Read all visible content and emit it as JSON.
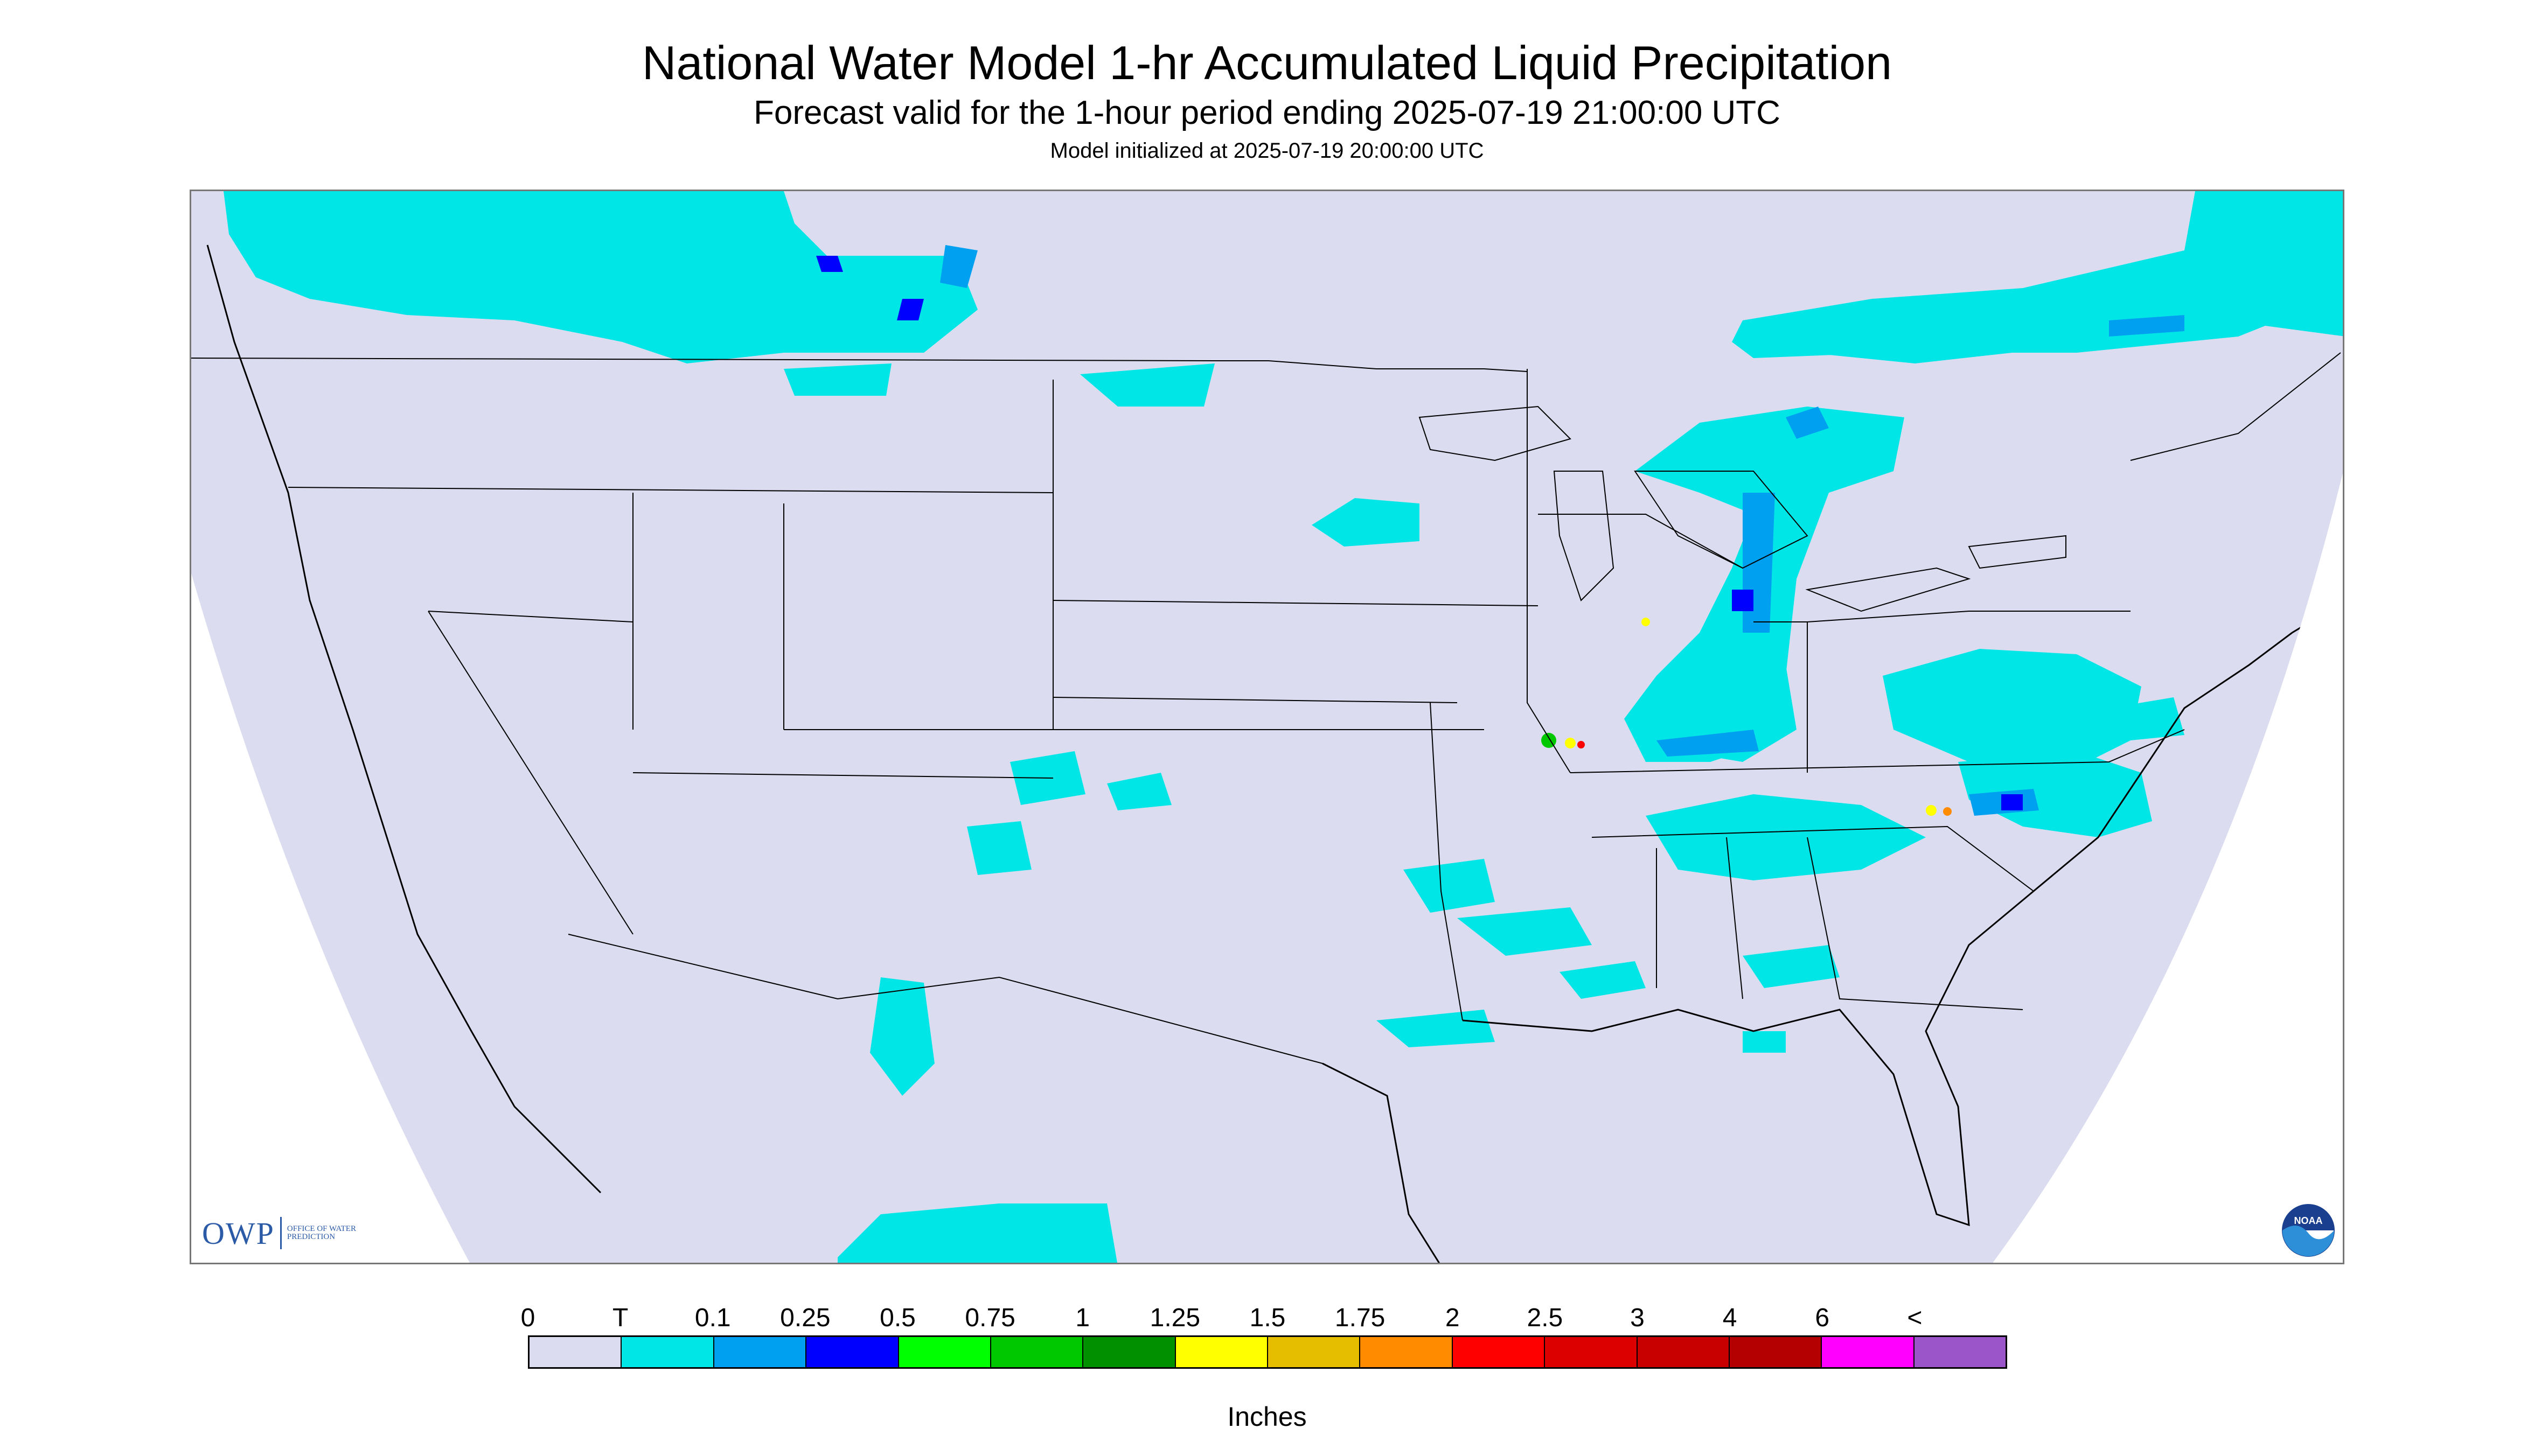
{
  "title": "National Water Model 1-hr Accumulated Liquid Precipitation",
  "subtitle": "Forecast valid for the 1-hour period ending 2025-07-19 21:00:00 UTC",
  "init_line": "Model initialized at 2025-07-19 20:00:00 UTC",
  "logo": {
    "owp_mark": "OWP",
    "owp_text": "OFFICE OF WATER PREDICTION",
    "noaa_text": "NOAA"
  },
  "legend": {
    "unit": "Inches",
    "tick_labels": [
      "0",
      "T",
      "0.1",
      "0.25",
      "0.5",
      "0.75",
      "1",
      "1.25",
      "1.5",
      "1.75",
      "2",
      "2.5",
      "3",
      "4",
      "6",
      "<"
    ],
    "colors": [
      "#dcdcf0",
      "#00e6e6",
      "#00a0f0",
      "#0000ff",
      "#00ff00",
      "#00c800",
      "#009000",
      "#ffff00",
      "#e6be00",
      "#ff8c00",
      "#ff0000",
      "#dc0000",
      "#c80000",
      "#b40000",
      "#ff00ff",
      "#9b55c8"
    ]
  },
  "colors": {
    "map_fill": "#dcdcf0",
    "outside_domain": "#ffffff",
    "boundary": "#000000",
    "trace": "#00e6e6",
    "light": "#00a0f0",
    "moderate": "#0000ff",
    "heavy_green": "#00c800",
    "heavy_yellow": "#ffff00",
    "heavy_orange": "#ff8c00",
    "heavy_red": "#ff0000"
  }
}
